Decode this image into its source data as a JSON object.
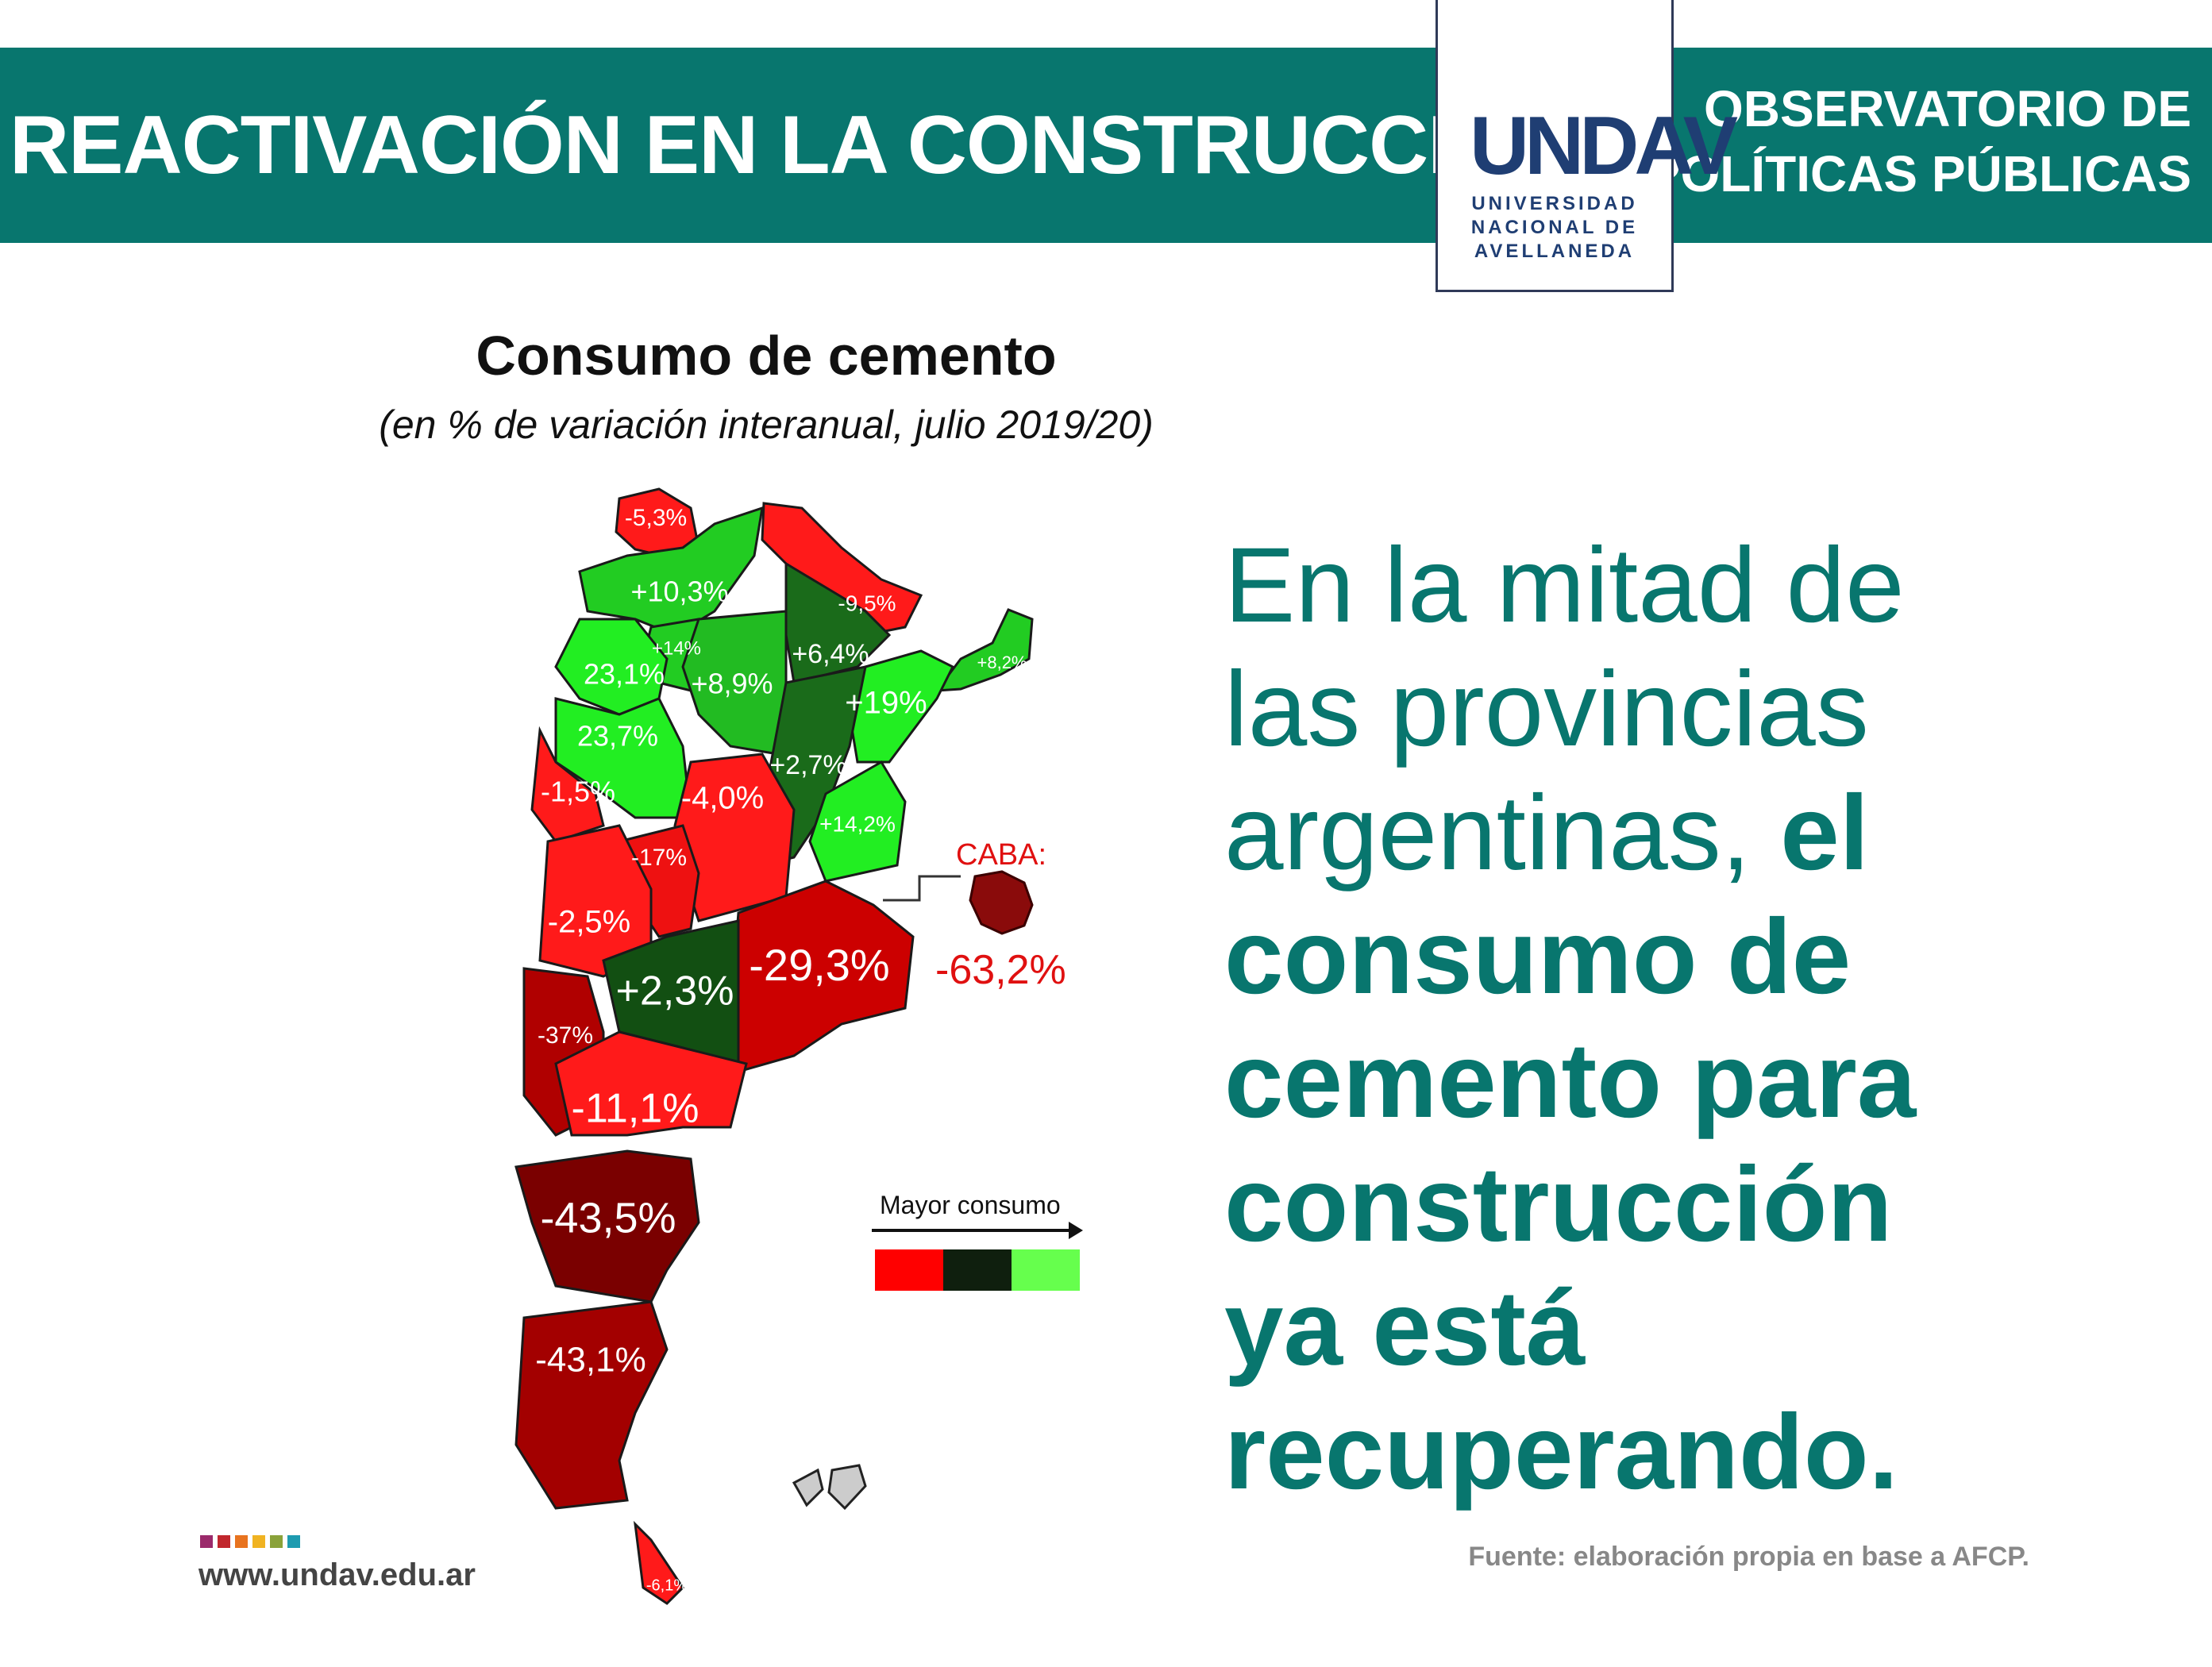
{
  "header": {
    "title": "REACTIVACIÓN EN LA CONSTRUCCIÓN",
    "observatory_line1": "OBSERVATORIO DE",
    "observatory_line2": "POLÍTICAS PÚBLICAS",
    "logo_mark": "UNDAV",
    "logo_line1": "UNIVERSIDAD",
    "logo_line2": "NACIONAL DE",
    "logo_line3": "AVELLANEDA",
    "banner_color": "#08766e"
  },
  "map": {
    "title": "Consumo de cemento",
    "subtitle": "(en % de variación interanual, julio 2019/20)",
    "regions": [
      {
        "value": "-5,3%",
        "color": "#ff1a1a"
      },
      {
        "value": "+10,3%",
        "color": "#22cc22"
      },
      {
        "value": "-9,5%",
        "color": "#ff1a1a"
      },
      {
        "value": "+14%",
        "color": "#22cc22"
      },
      {
        "value": "+6,4%",
        "color": "#1a6b1a"
      },
      {
        "value": "+8,2%",
        "color": "#22cc22"
      },
      {
        "value": "23,1%",
        "color": "#22ee22"
      },
      {
        "value": "+8,9%",
        "color": "#22bb22"
      },
      {
        "value": "+19%",
        "color": "#22ee22"
      },
      {
        "value": "23,7%",
        "color": "#22ee22"
      },
      {
        "value": "+2,7%",
        "color": "#1a6b1a"
      },
      {
        "value": "-1,5%",
        "color": "#ff1a1a"
      },
      {
        "value": "-4,0%",
        "color": "#ff1a1a"
      },
      {
        "value": "+14,2%",
        "color": "#22ee22"
      },
      {
        "value": "-17%",
        "color": "#ee1111"
      },
      {
        "value": "-2,5%",
        "color": "#ff1a1a"
      },
      {
        "value": "-29,3%",
        "color": "#cc0000"
      },
      {
        "value": "+2,3%",
        "color": "#124f12"
      },
      {
        "value": "-37%",
        "color": "#b00000"
      },
      {
        "value": "-11,1%",
        "color": "#ff1a1a"
      },
      {
        "value": "-43,5%",
        "color": "#7a0000"
      },
      {
        "value": "-43,1%",
        "color": "#a30000"
      },
      {
        "value": "-6,1%",
        "color": "#ff1a1a"
      }
    ],
    "caba": {
      "title": "CABA:",
      "value": "-63,2%",
      "color": "#8a0b0b"
    },
    "legend": {
      "label": "Mayor consumo",
      "colors": [
        "#ff0000",
        "#0f1f0e",
        "#66ff4d"
      ]
    }
  },
  "headline": {
    "normal_line1": "En la mitad de",
    "normal_line2": "las provincias",
    "normal_line3": "argentinas,",
    "bold_inline": "el",
    "bold_line1": "consumo de",
    "bold_line2": "cemento para",
    "bold_line3": "construcción",
    "bold_line4": "ya está",
    "bold_line5": "recuperando."
  },
  "footer": {
    "website": "www.undav.edu.ar",
    "source": "Fuente: elaboración propia en base a AFCP.",
    "dot_colors": [
      "#9b2a6b",
      "#c1272d",
      "#e8731f",
      "#f0b322",
      "#8aa23a",
      "#1e9bb0"
    ]
  }
}
